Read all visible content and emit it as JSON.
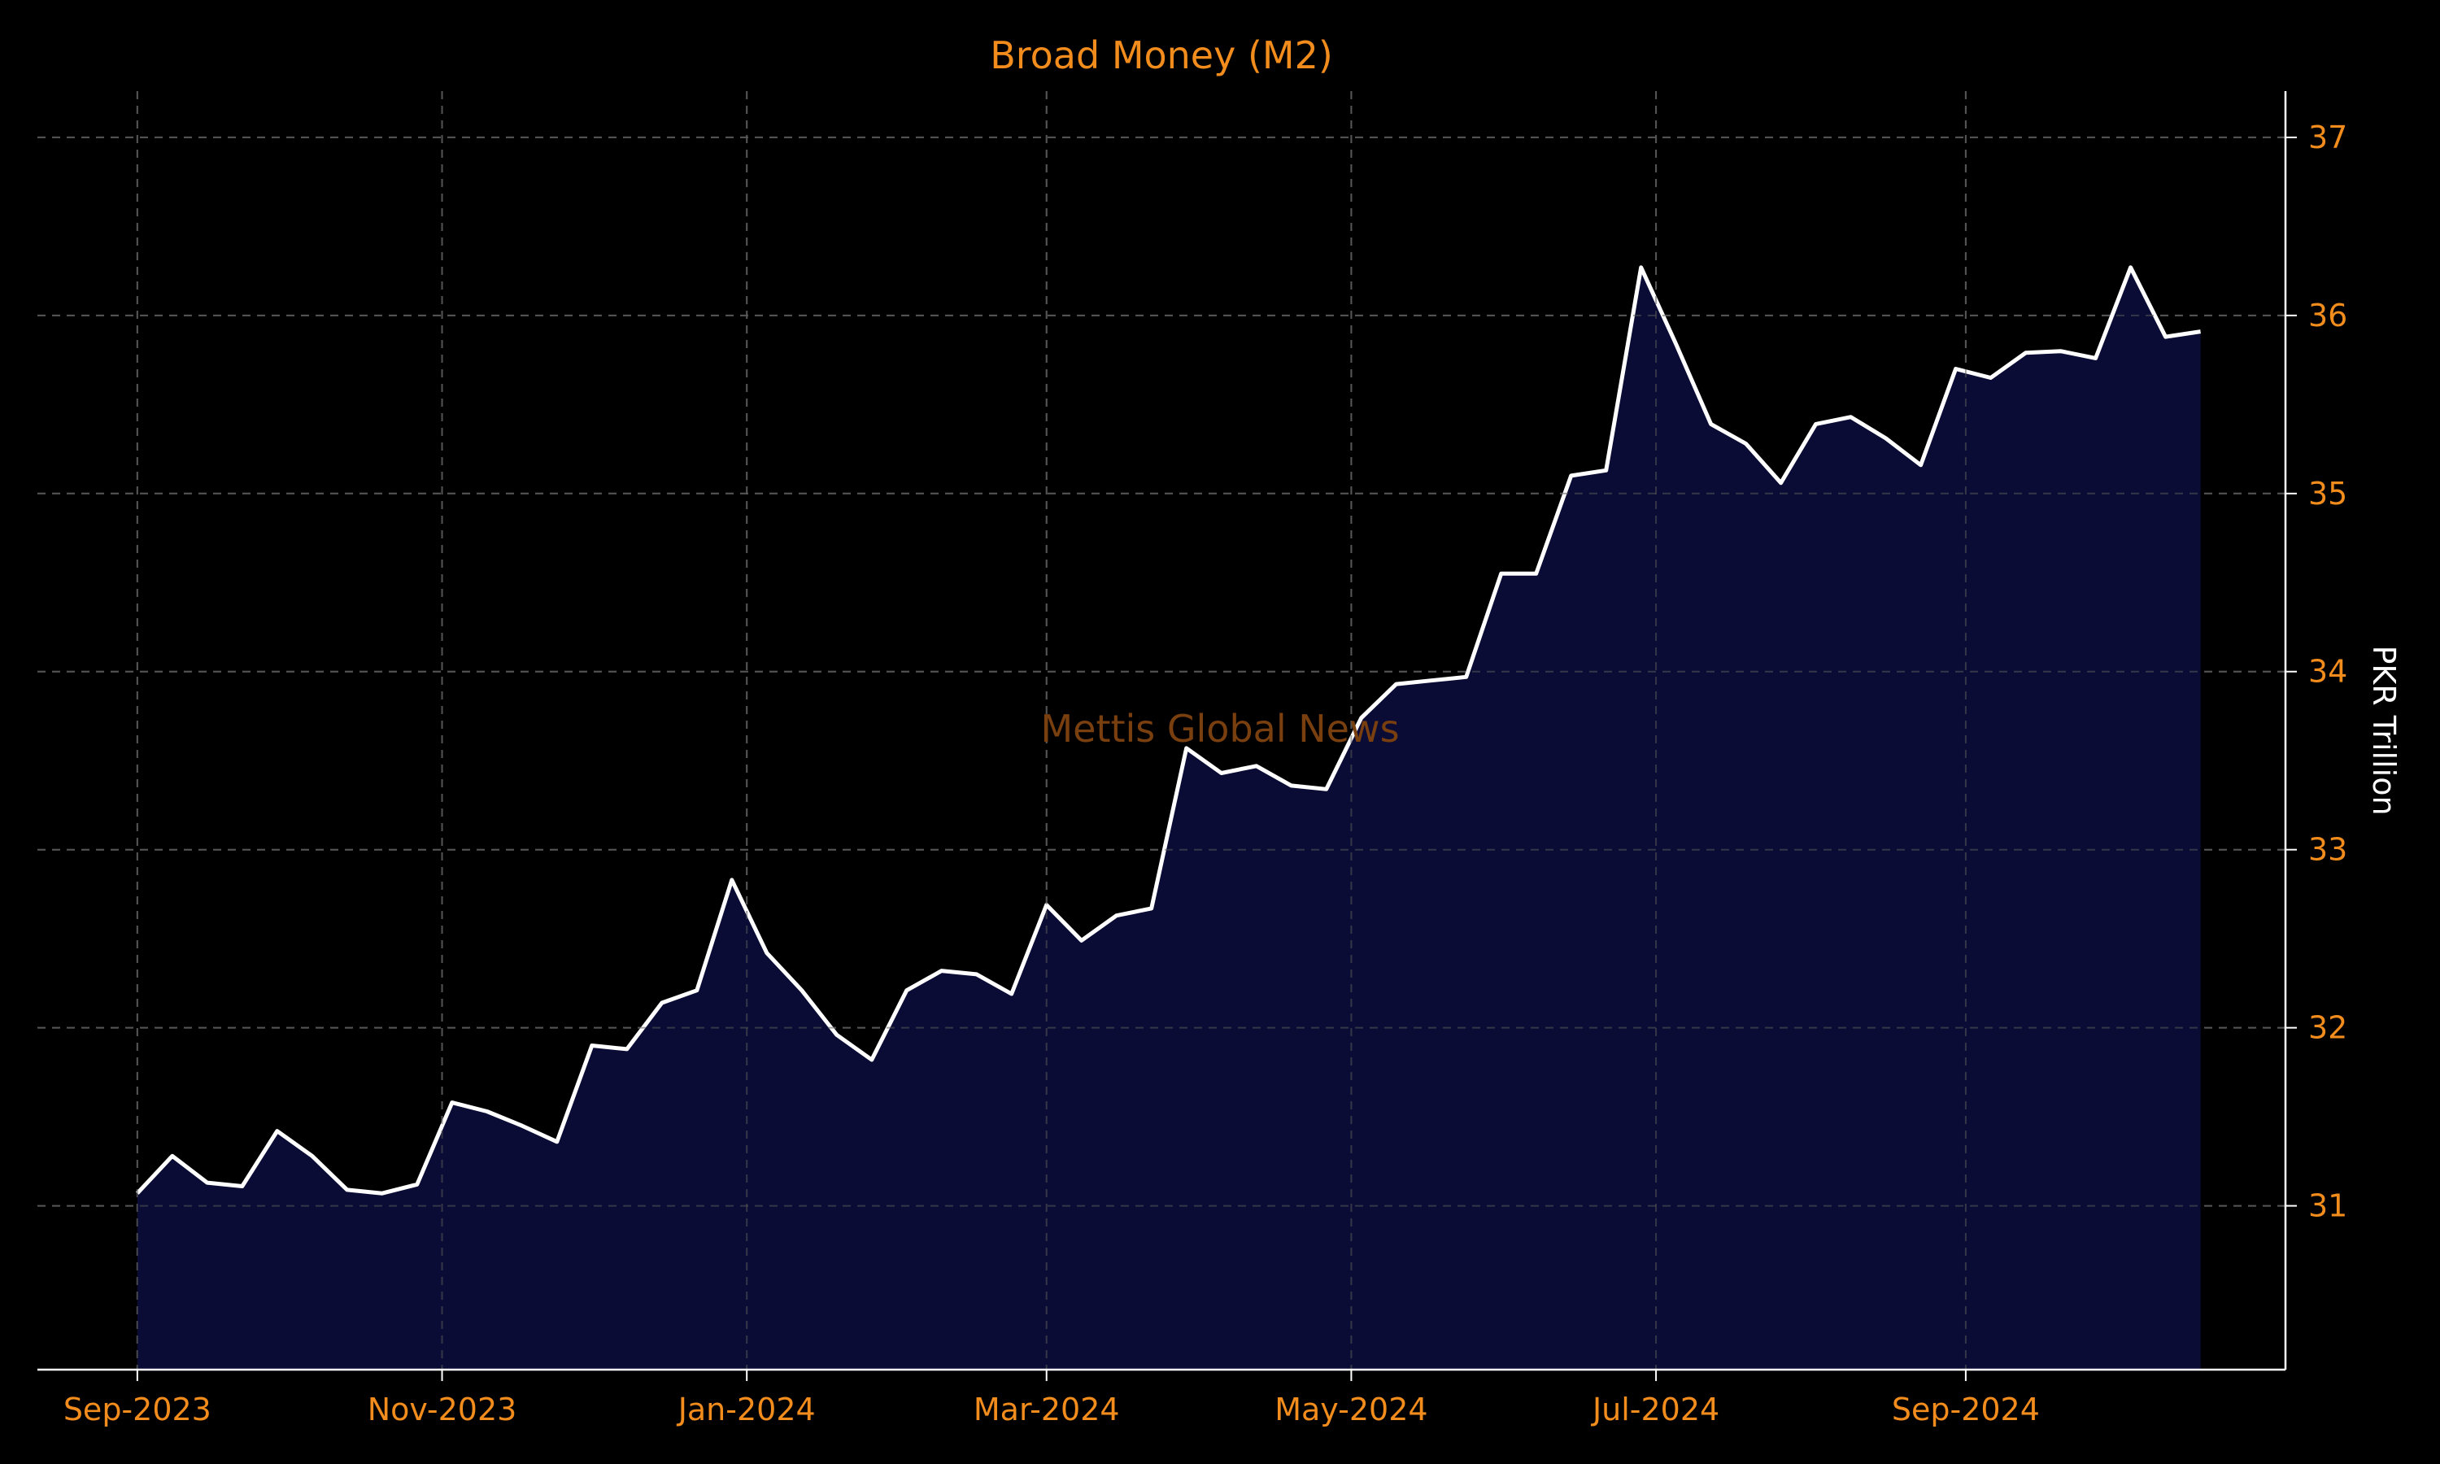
{
  "chart_data": {
    "type": "area",
    "title": "Broad Money (M2)",
    "xlabel": "",
    "ylabel": "PKR Trillion",
    "watermark": "Mettis Global News",
    "x_tick_labels": [
      "Sep-2023",
      "Nov-2023",
      "Jan-2024",
      "Mar-2024",
      "May-2024",
      "Jul-2024",
      "Sep-2024"
    ],
    "x_tick_dates": [
      "2023-09-01",
      "2023-11-01",
      "2024-01-01",
      "2024-03-01",
      "2024-05-01",
      "2024-07-01",
      "2024-09-01"
    ],
    "y_ticks": [
      31,
      32,
      33,
      34,
      35,
      36,
      37
    ],
    "ylim": [
      30.08,
      37.26
    ],
    "xlim": [
      "2023-08-12",
      "2024-11-04"
    ],
    "y_axis_side": "right",
    "grid": true,
    "colors": {
      "background": "#000000",
      "line": "#ffffff",
      "fill": "#0b0d38",
      "accent": "#f28c1c",
      "grid": "#555555",
      "watermark": "#7a3f0f",
      "axis_label": "#ffffff"
    },
    "series": [
      {
        "x": [
          "2023-09-01",
          "2023-09-08",
          "2023-09-15",
          "2023-09-22",
          "2023-09-29",
          "2023-10-06",
          "2023-10-13",
          "2023-10-20",
          "2023-10-27",
          "2023-11-03",
          "2023-11-10",
          "2023-11-17",
          "2023-11-24",
          "2023-12-01",
          "2023-12-08",
          "2023-12-15",
          "2023-12-22",
          "2023-12-29",
          "2024-01-05",
          "2024-01-12",
          "2024-01-19",
          "2024-01-26",
          "2024-02-02",
          "2024-02-09",
          "2024-02-16",
          "2024-02-23",
          "2024-03-01",
          "2024-03-08",
          "2024-03-15",
          "2024-03-22",
          "2024-03-29",
          "2024-04-05",
          "2024-04-12",
          "2024-04-19",
          "2024-04-26",
          "2024-05-03",
          "2024-05-10",
          "2024-05-17",
          "2024-05-24",
          "2024-05-31",
          "2024-06-07",
          "2024-06-14",
          "2024-06-21",
          "2024-06-28",
          "2024-07-05",
          "2024-07-12",
          "2024-07-19",
          "2024-07-26",
          "2024-08-02",
          "2024-08-09",
          "2024-08-16",
          "2024-08-23",
          "2024-08-30",
          "2024-09-06",
          "2024-09-13",
          "2024-09-20",
          "2024-09-27",
          "2024-10-04",
          "2024-10-11",
          "2024-10-18"
        ],
        "values": [
          31.07,
          31.28,
          31.13,
          31.11,
          31.42,
          31.28,
          31.09,
          31.07,
          31.12,
          31.58,
          31.53,
          31.45,
          31.36,
          31.9,
          31.88,
          32.14,
          32.21,
          32.83,
          32.42,
          32.21,
          31.96,
          31.82,
          32.21,
          32.32,
          32.3,
          32.19,
          32.69,
          32.49,
          32.63,
          32.67,
          33.57,
          33.43,
          33.47,
          33.36,
          33.34,
          33.74,
          33.93,
          33.95,
          33.97,
          34.55,
          34.55,
          35.1,
          35.13,
          36.27,
          35.84,
          35.39,
          35.28,
          35.06,
          35.39,
          35.43,
          35.31,
          35.16,
          35.7,
          35.65,
          35.79,
          35.8,
          35.76,
          36.27,
          35.88,
          35.91
        ]
      }
    ]
  }
}
